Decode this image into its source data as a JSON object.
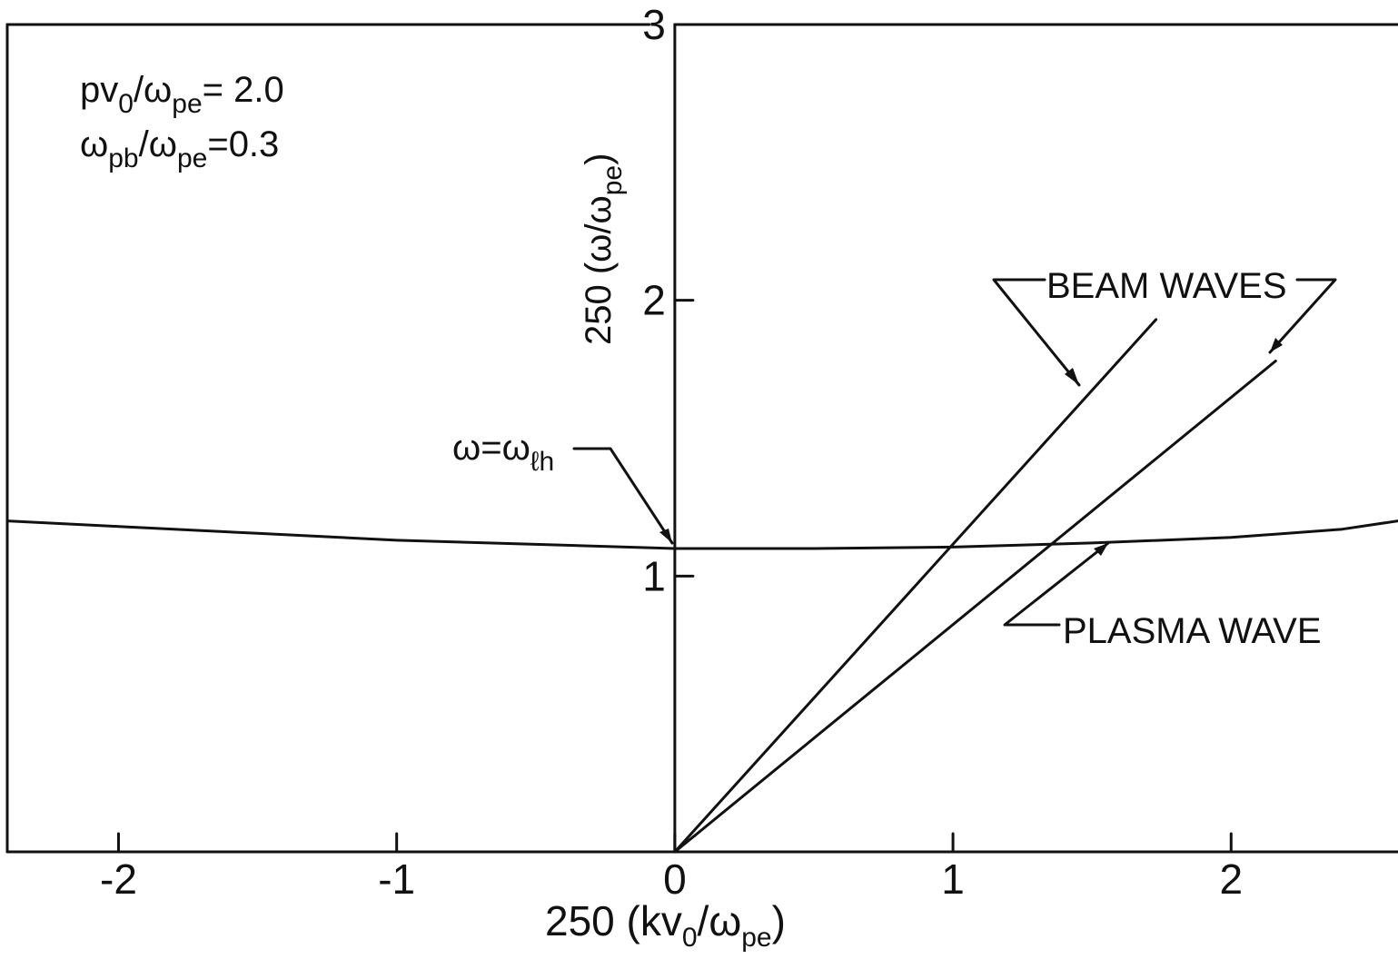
{
  "chart_data": {
    "type": "line",
    "xlabel": {
      "prefix": "250 (kv",
      "sub1": "0",
      "mid": "/ω",
      "sub2": "pe",
      "suffix": ")"
    },
    "ylabel": {
      "prefix": "250 (ω/ω",
      "sub": "pe",
      "suffix": ")"
    },
    "xlim": [
      -2.4,
      2.6
    ],
    "ylim": [
      0,
      3
    ],
    "x_ticks": [
      -2,
      -1,
      0,
      1,
      2
    ],
    "x_tick_labels": [
      "-2",
      "-1",
      "0",
      "1",
      "2"
    ],
    "y_ticks": [
      1,
      2,
      3
    ],
    "y_tick_labels": [
      "1",
      "2",
      "3"
    ],
    "grid": false,
    "params": [
      {
        "var": "pv",
        "sub1": "0",
        "mid": "/ω",
        "sub2": "pe",
        "value": "= 2.0"
      },
      {
        "var": "ω",
        "sub1": "pb",
        "mid": "/ω",
        "sub2": "pe",
        "value": "=0.3"
      }
    ],
    "series": [
      {
        "x": [
          -2.4,
          -2.0,
          -1.5,
          -1.0,
          -0.5,
          0.0,
          0.5,
          1.0,
          1.5,
          2.0,
          2.4,
          2.6
        ],
        "y": [
          1.2,
          1.18,
          1.155,
          1.13,
          1.115,
          1.1,
          1.1,
          1.105,
          1.12,
          1.14,
          1.17,
          1.2
        ]
      },
      {
        "x": [
          0.0,
          1.73
        ],
        "y": [
          0.0,
          1.93
        ]
      },
      {
        "x": [
          0.0,
          2.16
        ],
        "y": [
          0.0,
          1.78
        ]
      }
    ],
    "annotations": {
      "beam_waves": "BEAM  WAVES",
      "plasma_wave": "PLASMA  WAVE",
      "omega_lh": {
        "lhs": "ω=ω",
        "sub": "ℓh"
      }
    }
  }
}
